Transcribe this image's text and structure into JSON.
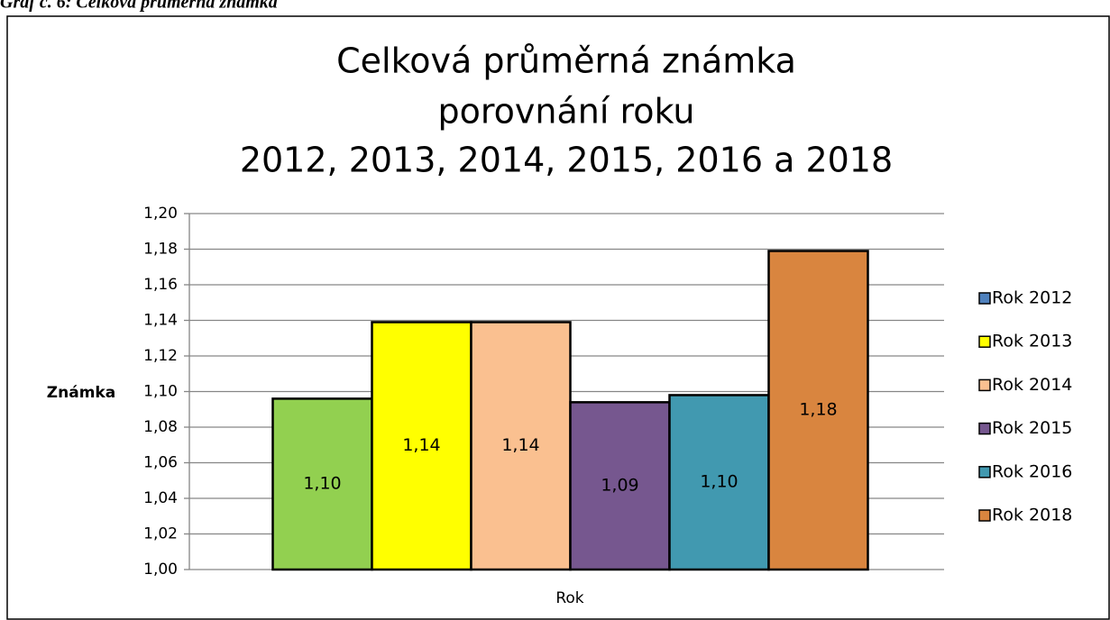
{
  "caption": "Graf č. 6: Celková průměrná známka",
  "chart_data": {
    "type": "bar",
    "title": [
      "Celková průměrná známka",
      "porovnání roku",
      "2012, 2013, 2014, 2015, 2016 a 2018"
    ],
    "x_label": "Rok",
    "y_label": "Známka",
    "series": [
      {
        "name": "Rok 2012",
        "color": "#92d050",
        "legend_color": "#4f81bd",
        "values": [
          1.096
        ],
        "value_labels": [
          "1,10"
        ]
      },
      {
        "name": "Rok 2013",
        "color": "#ffff00",
        "legend_color": "#ffff00",
        "values": [
          1.139
        ],
        "value_labels": [
          "1,14"
        ]
      },
      {
        "name": "Rok 2014",
        "color": "#fac090",
        "legend_color": "#fac090",
        "values": [
          1.139
        ],
        "value_labels": [
          "1,14"
        ]
      },
      {
        "name": "Rok 2015",
        "color": "#76578f",
        "legend_color": "#76578f",
        "values": [
          1.094
        ],
        "value_labels": [
          "1,09"
        ]
      },
      {
        "name": "Rok 2016",
        "color": "#4199b0",
        "legend_color": "#4199b0",
        "values": [
          1.098
        ],
        "value_labels": [
          "1,10"
        ]
      },
      {
        "name": "Rok 2018",
        "color": "#d9853f",
        "legend_color": "#d9853f",
        "values": [
          1.179
        ],
        "value_labels": [
          "1,18"
        ]
      }
    ],
    "ylim": [
      1.0,
      1.2
    ],
    "yticks": [
      {
        "value": 1.0,
        "label": "1,00"
      },
      {
        "value": 1.02,
        "label": "1,02"
      },
      {
        "value": 1.04,
        "label": "1,04"
      },
      {
        "value": 1.06,
        "label": "1,06"
      },
      {
        "value": 1.08,
        "label": "1,08"
      },
      {
        "value": 1.1,
        "label": "1,10"
      },
      {
        "value": 1.12,
        "label": "1,12"
      },
      {
        "value": 1.14,
        "label": "1,14"
      },
      {
        "value": 1.16,
        "label": "1,16"
      },
      {
        "value": 1.18,
        "label": "1,18"
      },
      {
        "value": 1.2,
        "label": "1,20"
      }
    ],
    "grid": true,
    "legend": "right"
  }
}
